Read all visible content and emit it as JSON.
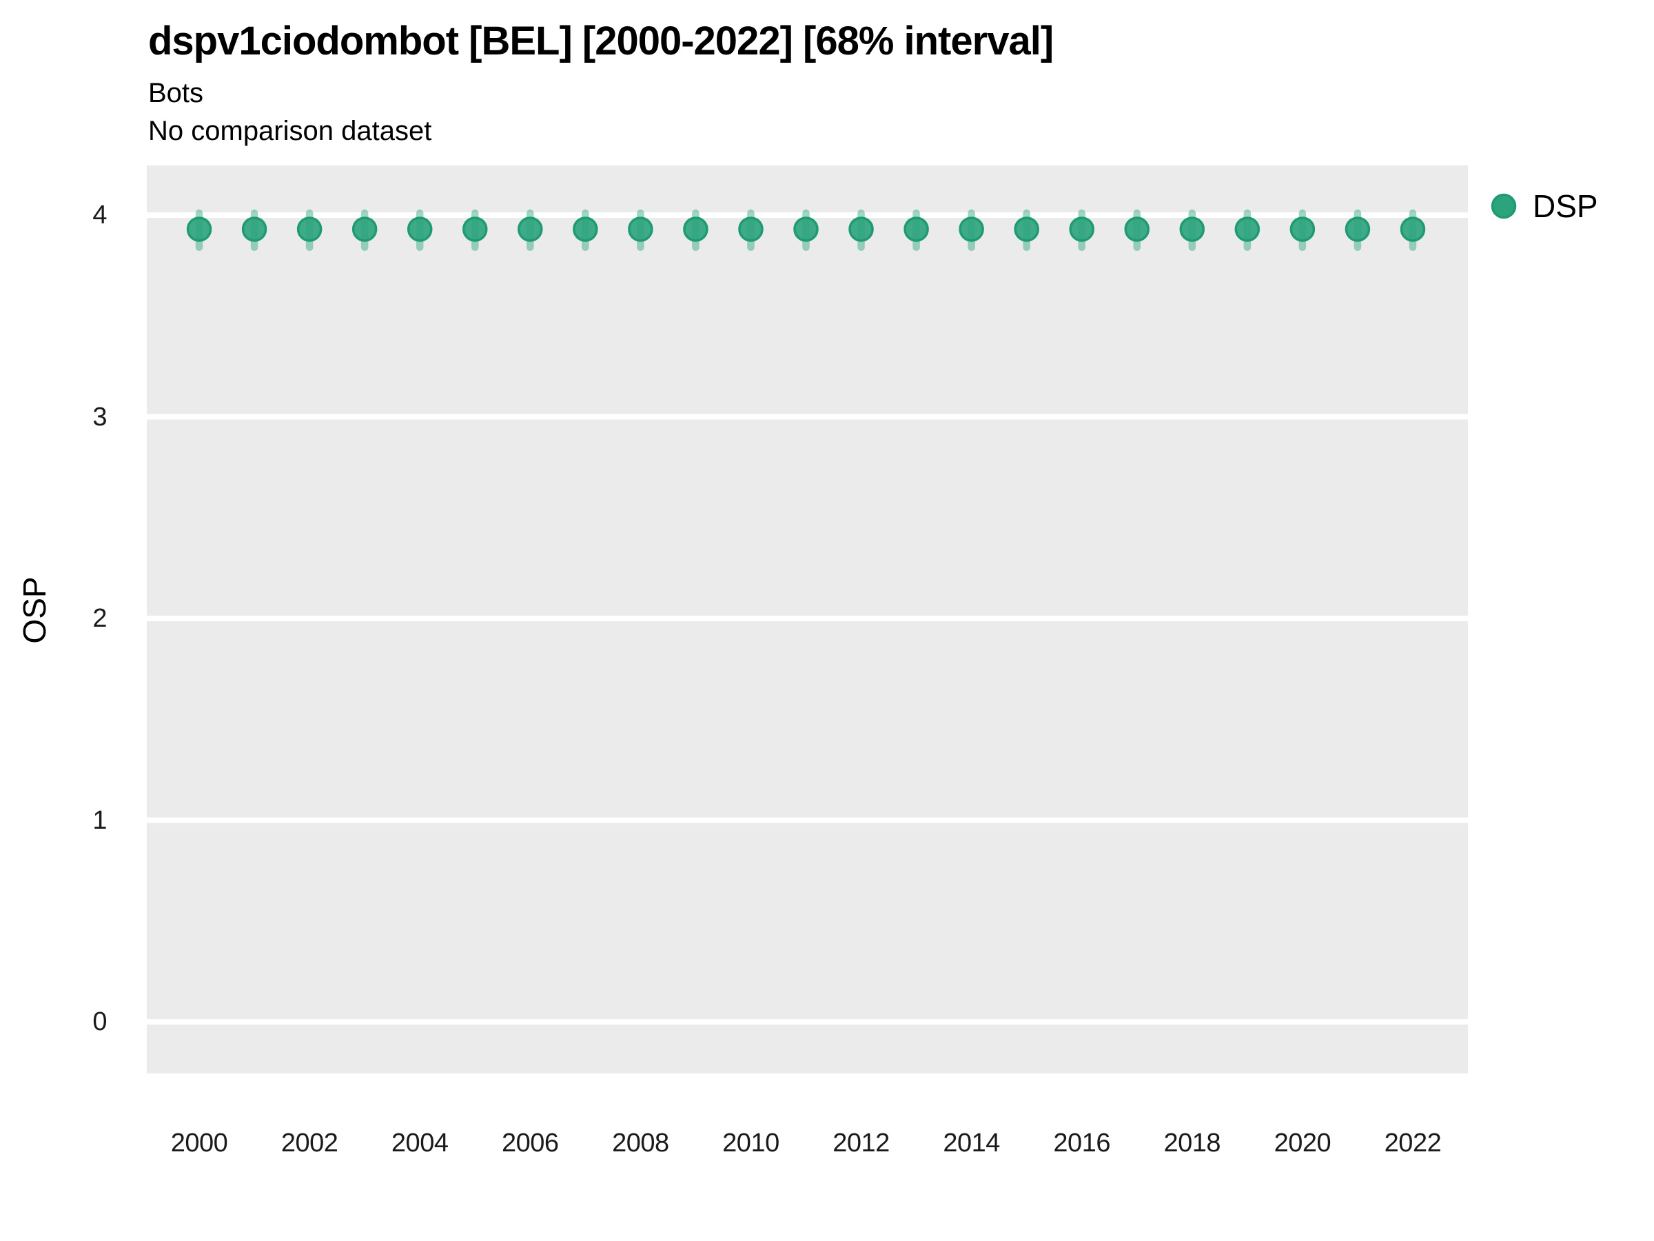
{
  "header": {
    "title": "dspv1ciodombot [BEL] [2000-2022] [68% interval]",
    "subtitle_line1": "Bots",
    "subtitle_line2": "No comparison dataset"
  },
  "legend": {
    "position": "right-top",
    "entries": [
      {
        "label": "DSP",
        "marker": "circle"
      }
    ]
  },
  "colors": {
    "panel_background": "#EBEBEB",
    "gridline": "#FFFFFF",
    "point_fill": "#2BA37D",
    "point_stroke": "#1E9B72",
    "interval_bar": "#2BA37D",
    "interval_bar_opacity": 0.45,
    "text": "#000000",
    "tick_text": "#1A1A1A"
  },
  "chart_data": {
    "type": "scatter",
    "subtype": "pointrange",
    "title": "dspv1ciodombot [BEL] [2000-2022] [68% interval]",
    "subtitle": "Bots / No comparison dataset",
    "xlabel": "",
    "ylabel": "OSP",
    "grid": "major-horizontal-only",
    "legend_position": "right-top",
    "xlim": [
      1999.05,
      2023.0
    ],
    "ylim": [
      -0.256,
      4.246
    ],
    "xticks": [
      2000,
      2002,
      2004,
      2006,
      2008,
      2010,
      2012,
      2014,
      2016,
      2018,
      2020,
      2022
    ],
    "yticks": [
      0,
      1,
      2,
      3,
      4
    ],
    "x": [
      2000,
      2001,
      2002,
      2003,
      2004,
      2005,
      2006,
      2007,
      2008,
      2009,
      2010,
      2011,
      2012,
      2013,
      2014,
      2015,
      2016,
      2017,
      2018,
      2019,
      2020,
      2021,
      2022
    ],
    "series": [
      {
        "name": "DSP",
        "interval_label": "68% interval",
        "values": [
          3.93,
          3.93,
          3.93,
          3.93,
          3.93,
          3.93,
          3.93,
          3.93,
          3.93,
          3.93,
          3.93,
          3.93,
          3.93,
          3.93,
          3.93,
          3.93,
          3.93,
          3.93,
          3.93,
          3.93,
          3.93,
          3.93,
          3.93
        ],
        "lower": [
          3.84,
          3.84,
          3.84,
          3.84,
          3.84,
          3.84,
          3.84,
          3.84,
          3.84,
          3.84,
          3.84,
          3.84,
          3.84,
          3.84,
          3.84,
          3.84,
          3.84,
          3.84,
          3.84,
          3.84,
          3.84,
          3.84,
          3.84
        ],
        "upper": [
          4.01,
          4.01,
          4.01,
          4.01,
          4.01,
          4.01,
          4.01,
          4.01,
          4.01,
          4.01,
          4.01,
          4.01,
          4.01,
          4.01,
          4.01,
          4.01,
          4.01,
          4.01,
          4.01,
          4.01,
          4.01,
          4.01,
          4.01
        ]
      }
    ]
  }
}
